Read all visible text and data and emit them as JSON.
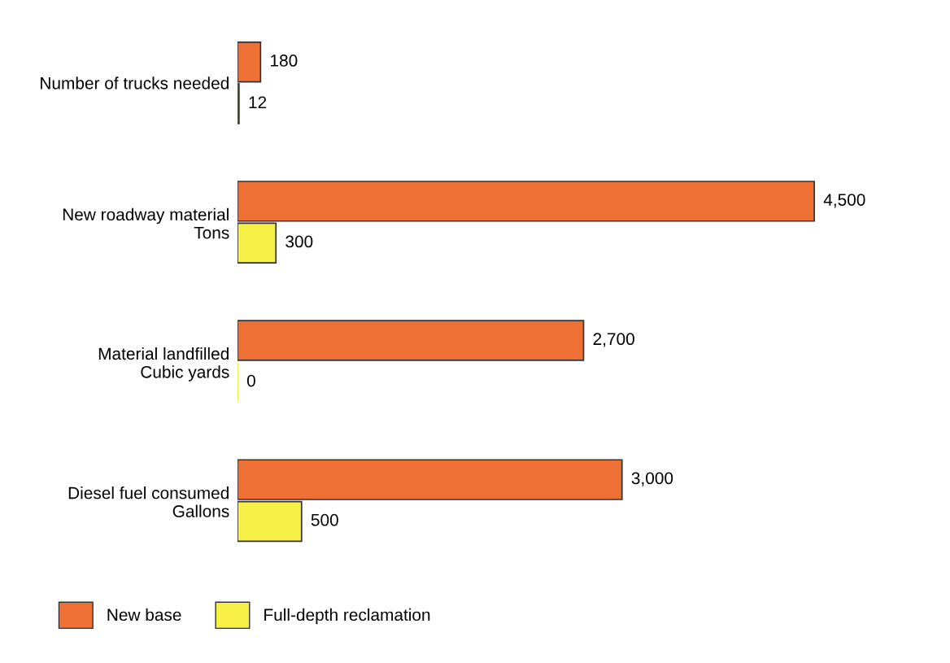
{
  "chart_data": {
    "type": "bar",
    "orientation": "horizontal",
    "categories": [
      "Number of trucks needed",
      "New roadway material\nTons",
      "Material landfilled\nCubic yards",
      "Diesel fuel consumed\nGallons"
    ],
    "series": [
      {
        "name": "New base",
        "color": "#ee7035",
        "values": [
          180,
          4500,
          2700,
          3000
        ],
        "value_labels": [
          "180",
          "4,500",
          "2,700",
          "3,000"
        ]
      },
      {
        "name": "Full-depth reclamation",
        "color": "#f7f046",
        "values": [
          12,
          300,
          0,
          500
        ],
        "value_labels": [
          "12",
          "300",
          "0",
          "500"
        ]
      }
    ],
    "tick_labels": "y",
    "grid": false,
    "legend": "bottom left"
  }
}
